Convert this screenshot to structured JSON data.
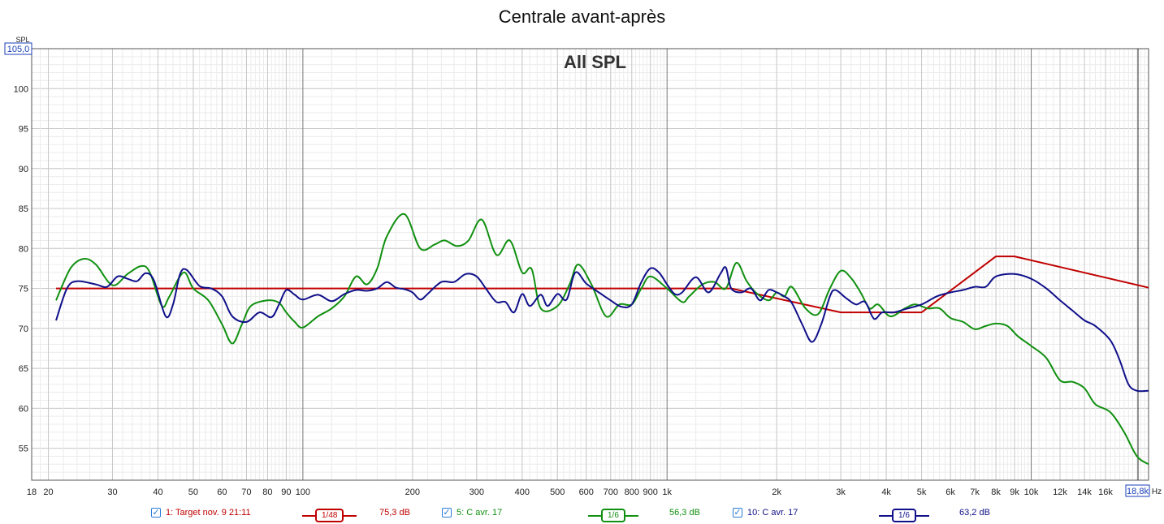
{
  "title": "Centrale avant-après",
  "chart_data": {
    "type": "line",
    "title": "Centrale avant-après",
    "subtitle": "All SPL",
    "ylabel": "SPL",
    "xunit": "Hz",
    "xscale": "log",
    "xlim": [
      18,
      21000
    ],
    "ylim": [
      51,
      105
    ],
    "y_top_box": "105,0",
    "x_right_box": "18,8k",
    "y_ticks": [
      55,
      60,
      65,
      70,
      75,
      80,
      85,
      90,
      95,
      100
    ],
    "x_ticks": [
      {
        "v": 18,
        "l": "18"
      },
      {
        "v": 20,
        "l": "20"
      },
      {
        "v": 30,
        "l": "30"
      },
      {
        "v": 40,
        "l": "40"
      },
      {
        "v": 50,
        "l": "50"
      },
      {
        "v": 60,
        "l": "60"
      },
      {
        "v": 70,
        "l": "70"
      },
      {
        "v": 80,
        "l": "80"
      },
      {
        "v": 90,
        "l": "90"
      },
      {
        "v": 100,
        "l": "100"
      },
      {
        "v": 200,
        "l": "200"
      },
      {
        "v": 300,
        "l": "300"
      },
      {
        "v": 400,
        "l": "400"
      },
      {
        "v": 500,
        "l": "500"
      },
      {
        "v": 600,
        "l": "600"
      },
      {
        "v": 700,
        "l": "700"
      },
      {
        "v": 800,
        "l": "800"
      },
      {
        "v": 900,
        "l": "900"
      },
      {
        "v": 1000,
        "l": "1k"
      },
      {
        "v": 2000,
        "l": "2k"
      },
      {
        "v": 3000,
        "l": "3k"
      },
      {
        "v": 4000,
        "l": "4k"
      },
      {
        "v": 5000,
        "l": "5k"
      },
      {
        "v": 6000,
        "l": "6k"
      },
      {
        "v": 7000,
        "l": "7k"
      },
      {
        "v": 8000,
        "l": "8k"
      },
      {
        "v": 9000,
        "l": "9k"
      },
      {
        "v": 10000,
        "l": "10k"
      },
      {
        "v": 12000,
        "l": "12k"
      },
      {
        "v": 14000,
        "l": "14k"
      },
      {
        "v": 16000,
        "l": "16k"
      }
    ],
    "series": [
      {
        "name": "1: Target nov. 9 21:11",
        "color": "#c00000",
        "smoothing": "1/48",
        "level": "75,3 dB",
        "points": [
          [
            21,
            75
          ],
          [
            1500,
            75
          ],
          [
            3000,
            72
          ],
          [
            5000,
            72
          ],
          [
            8000,
            79
          ],
          [
            9000,
            79
          ],
          [
            21000,
            75.1
          ]
        ]
      },
      {
        "name": "5: C avr. 17",
        "color": "#109010",
        "smoothing": "1/6",
        "level": "56,3 dB",
        "points": [
          [
            21,
            73.5
          ],
          [
            23,
            77.5
          ],
          [
            25,
            78.7
          ],
          [
            27,
            78
          ],
          [
            30,
            75.4
          ],
          [
            33,
            76.8
          ],
          [
            36,
            77.8
          ],
          [
            38,
            77
          ],
          [
            41,
            72.8
          ],
          [
            43,
            74
          ],
          [
            47,
            77
          ],
          [
            50,
            75
          ],
          [
            55,
            73.5
          ],
          [
            60,
            70.5
          ],
          [
            64,
            68.1
          ],
          [
            68,
            70.5
          ],
          [
            72,
            72.8
          ],
          [
            80,
            73.5
          ],
          [
            86,
            73.2
          ],
          [
            90,
            72
          ],
          [
            95,
            70.8
          ],
          [
            100,
            70.1
          ],
          [
            110,
            71.5
          ],
          [
            120,
            72.5
          ],
          [
            130,
            74
          ],
          [
            140,
            76.5
          ],
          [
            150,
            75.5
          ],
          [
            160,
            77.5
          ],
          [
            170,
            81.5
          ],
          [
            190,
            84.3
          ],
          [
            210,
            80
          ],
          [
            230,
            80.5
          ],
          [
            245,
            81
          ],
          [
            265,
            80.3
          ],
          [
            285,
            81
          ],
          [
            310,
            83.6
          ],
          [
            340,
            79.2
          ],
          [
            370,
            81
          ],
          [
            400,
            77
          ],
          [
            425,
            77.4
          ],
          [
            450,
            72.5
          ],
          [
            500,
            72.8
          ],
          [
            540,
            75.5
          ],
          [
            570,
            78
          ],
          [
            620,
            75.5
          ],
          [
            680,
            71.5
          ],
          [
            740,
            73
          ],
          [
            800,
            73
          ],
          [
            850,
            75
          ],
          [
            900,
            76.5
          ],
          [
            1000,
            75
          ],
          [
            1100,
            73.3
          ],
          [
            1150,
            74
          ],
          [
            1250,
            75.5
          ],
          [
            1350,
            75.8
          ],
          [
            1450,
            75
          ],
          [
            1550,
            78.2
          ],
          [
            1650,
            76
          ],
          [
            1750,
            74.5
          ],
          [
            1900,
            73.5
          ],
          [
            2000,
            74.5
          ],
          [
            2100,
            74
          ],
          [
            2200,
            75.2
          ],
          [
            2400,
            72.5
          ],
          [
            2600,
            71.8
          ],
          [
            2800,
            75
          ],
          [
            3000,
            77.2
          ],
          [
            3200,
            76.3
          ],
          [
            3400,
            74.5
          ],
          [
            3600,
            72.5
          ],
          [
            3800,
            73
          ],
          [
            4100,
            71.5
          ],
          [
            4500,
            72.5
          ],
          [
            4800,
            73
          ],
          [
            5200,
            72.5
          ],
          [
            5600,
            72.5
          ],
          [
            6000,
            71.3
          ],
          [
            6500,
            70.8
          ],
          [
            7000,
            69.9
          ],
          [
            7500,
            70.3
          ],
          [
            8000,
            70.6
          ],
          [
            8600,
            70.3
          ],
          [
            9200,
            69
          ],
          [
            10000,
            67.8
          ],
          [
            11000,
            66.3
          ],
          [
            12000,
            63.5
          ],
          [
            13000,
            63.3
          ],
          [
            14000,
            62.5
          ],
          [
            15000,
            60.5
          ],
          [
            16500,
            59.5
          ],
          [
            18000,
            57
          ],
          [
            19500,
            54
          ],
          [
            21000,
            53
          ]
        ]
      },
      {
        "name": "10: C avr. 17",
        "color": "#10108a",
        "smoothing": "1/6",
        "level": "63,2 dB",
        "points": [
          [
            21,
            71
          ],
          [
            22.5,
            75
          ],
          [
            24,
            75.9
          ],
          [
            27,
            75.5
          ],
          [
            29,
            75.2
          ],
          [
            31,
            76.5
          ],
          [
            33,
            76.2
          ],
          [
            35,
            75.9
          ],
          [
            37,
            76.9
          ],
          [
            39,
            76
          ],
          [
            42,
            71.5
          ],
          [
            44,
            73
          ],
          [
            46,
            76.8
          ],
          [
            48,
            77.3
          ],
          [
            52,
            75.3
          ],
          [
            56,
            75
          ],
          [
            60,
            74
          ],
          [
            64,
            71.5
          ],
          [
            70,
            70.8
          ],
          [
            76,
            72
          ],
          [
            82,
            71.4
          ],
          [
            86,
            73
          ],
          [
            90,
            74.8
          ],
          [
            95,
            74.2
          ],
          [
            100,
            73.6
          ],
          [
            110,
            74.2
          ],
          [
            120,
            73.4
          ],
          [
            130,
            74.3
          ],
          [
            140,
            74.8
          ],
          [
            150,
            74.7
          ],
          [
            160,
            75
          ],
          [
            170,
            75.8
          ],
          [
            180,
            75.1
          ],
          [
            190,
            74.9
          ],
          [
            200,
            74.5
          ],
          [
            210,
            73.6
          ],
          [
            220,
            74.3
          ],
          [
            240,
            75.8
          ],
          [
            260,
            75.8
          ],
          [
            280,
            76.8
          ],
          [
            300,
            76.5
          ],
          [
            320,
            74.8
          ],
          [
            340,
            73.3
          ],
          [
            360,
            73.3
          ],
          [
            380,
            72
          ],
          [
            400,
            74.3
          ],
          [
            420,
            72.8
          ],
          [
            450,
            74.2
          ],
          [
            470,
            72.8
          ],
          [
            500,
            74.3
          ],
          [
            530,
            73.6
          ],
          [
            560,
            77
          ],
          [
            600,
            75.6
          ],
          [
            650,
            74.5
          ],
          [
            700,
            73.5
          ],
          [
            750,
            72.7
          ],
          [
            800,
            73
          ],
          [
            850,
            75.8
          ],
          [
            900,
            77.5
          ],
          [
            950,
            77
          ],
          [
            1000,
            75.5
          ],
          [
            1050,
            74.3
          ],
          [
            1100,
            74.5
          ],
          [
            1200,
            76.4
          ],
          [
            1300,
            74.5
          ],
          [
            1400,
            76.8
          ],
          [
            1450,
            77.6
          ],
          [
            1500,
            75
          ],
          [
            1600,
            74.5
          ],
          [
            1700,
            75
          ],
          [
            1800,
            73.5
          ],
          [
            1900,
            74.8
          ],
          [
            2000,
            74.5
          ],
          [
            2100,
            74
          ],
          [
            2200,
            73.2
          ],
          [
            2350,
            70.5
          ],
          [
            2500,
            68.3
          ],
          [
            2650,
            70.5
          ],
          [
            2800,
            74
          ],
          [
            2900,
            74.8
          ],
          [
            3100,
            73.8
          ],
          [
            3300,
            73
          ],
          [
            3500,
            73.3
          ],
          [
            3700,
            71.2
          ],
          [
            3900,
            72
          ],
          [
            4200,
            72
          ],
          [
            4500,
            72.4
          ],
          [
            5000,
            73
          ],
          [
            5500,
            74
          ],
          [
            6000,
            74.5
          ],
          [
            6500,
            74.8
          ],
          [
            7000,
            75.2
          ],
          [
            7500,
            75.2
          ],
          [
            8000,
            76.5
          ],
          [
            9000,
            76.8
          ],
          [
            10000,
            76.2
          ],
          [
            11000,
            75
          ],
          [
            12000,
            73.5
          ],
          [
            13000,
            72.2
          ],
          [
            14000,
            71
          ],
          [
            15000,
            70.3
          ],
          [
            16500,
            68.5
          ],
          [
            17500,
            66
          ],
          [
            18500,
            63
          ],
          [
            19500,
            62.2
          ],
          [
            21000,
            62.2
          ]
        ]
      }
    ]
  }
}
